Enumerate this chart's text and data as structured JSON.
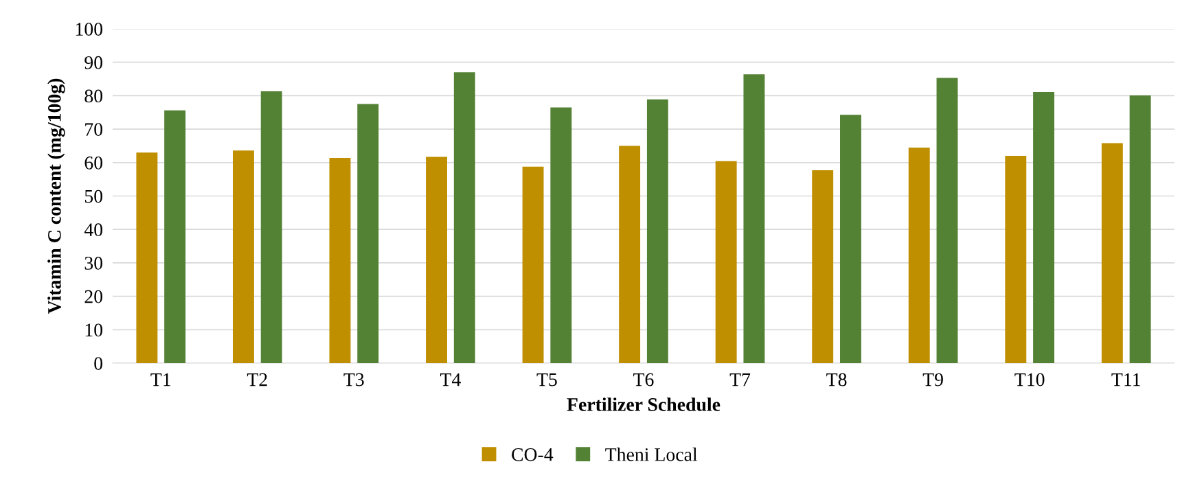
{
  "chart_data": {
    "type": "bar",
    "xlabel": "Fertilizer Schedule",
    "ylabel": "Vitamin C content (mg/100g)",
    "categories": [
      "T1",
      "T2",
      "T3",
      "T4",
      "T5",
      "T6",
      "T7",
      "T8",
      "T9",
      "T10",
      "T11"
    ],
    "series": [
      {
        "name": "CO-4",
        "color": "#bf8f00",
        "values": [
          63.0,
          63.6,
          61.4,
          61.7,
          58.8,
          65.0,
          60.4,
          57.7,
          64.5,
          62.0,
          65.8
        ]
      },
      {
        "name": "Theni Local",
        "color": "#548235",
        "values": [
          75.6,
          81.3,
          77.5,
          87.0,
          76.5,
          78.9,
          86.4,
          74.3,
          85.3,
          81.1,
          80.1
        ]
      }
    ],
    "ylim": [
      0,
      100
    ],
    "yticks": [
      0,
      10,
      20,
      30,
      40,
      50,
      60,
      70,
      80,
      90,
      100
    ],
    "grid": "y",
    "legend": "bottom"
  }
}
